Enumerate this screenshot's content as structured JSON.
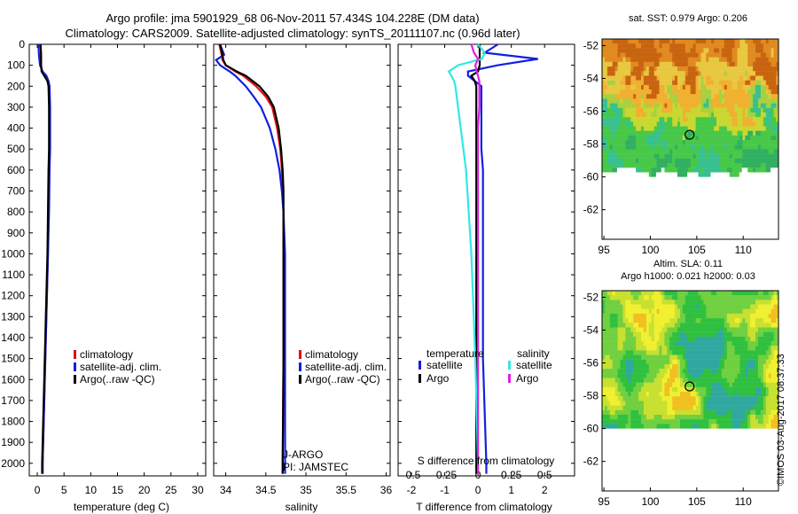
{
  "title_line1": "Argo profile: jma 5901929_68 06-Nov-2011 57.434S 104.228E (DM data)",
  "title_line2": "Climatology: CARS2009. Satellite-adjusted climatology: synTS_20111107.nc (0.96d later)",
  "stamp": "©IMOS 03-Aug-2017 08:37:33",
  "colors": {
    "climatology": "#e01010",
    "satellite": "#1020e0",
    "argo": "#000000",
    "sal_satellite": "#30e8e8",
    "sal_argo": "#e020e0",
    "land_white": "#ffffff"
  },
  "chart_data": [
    {
      "type": "line",
      "panel": "temperature",
      "xlabel": "temperature (deg C)",
      "xticks": [
        0,
        5,
        10,
        15,
        20,
        25,
        30
      ],
      "xlim": [
        -1.5,
        31.5
      ],
      "ylim": [
        2060,
        0
      ],
      "yticks": [
        0,
        100,
        200,
        300,
        400,
        500,
        600,
        700,
        800,
        900,
        1000,
        1100,
        1200,
        1300,
        1400,
        1500,
        1600,
        1700,
        1800,
        1900,
        2000
      ],
      "legend": [
        "climatology",
        "satellite-adj. clim.",
        "Argo(..raw -QC)"
      ],
      "depth": [
        0,
        50,
        100,
        130,
        150,
        175,
        200,
        300,
        400,
        500,
        600,
        800,
        1000,
        1200,
        1400,
        1600,
        1800,
        2000,
        2050
      ],
      "series": [
        {
          "name": "climatology",
          "values": [
            0.6,
            0.7,
            0.7,
            0.9,
            1.5,
            2.0,
            2.2,
            2.3,
            2.3,
            2.3,
            2.2,
            2.1,
            2.0,
            1.8,
            1.6,
            1.4,
            1.2,
            1.0,
            1.0
          ]
        },
        {
          "name": "satellite-adj. clim.",
          "values": [
            0.2,
            0.3,
            0.5,
            1.0,
            1.7,
            2.1,
            2.3,
            2.4,
            2.4,
            2.4,
            2.3,
            2.2,
            2.0,
            1.8,
            1.6,
            1.4,
            1.2,
            1.0,
            1.0
          ]
        },
        {
          "name": "Argo(..raw -QC)",
          "values": [
            0.6,
            0.7,
            0.7,
            0.8,
            1.3,
            1.9,
            2.1,
            2.2,
            2.2,
            2.2,
            2.1,
            2.0,
            1.9,
            1.7,
            1.5,
            1.3,
            1.1,
            0.9,
            0.9
          ]
        }
      ]
    },
    {
      "type": "line",
      "panel": "salinity",
      "xlabel": "salinity",
      "xticks": [
        34,
        34.5,
        35,
        35.5,
        36
      ],
      "xtick_labels": [
        "34",
        "34.5",
        "35",
        "35.5",
        "36"
      ],
      "xlim": [
        33.85,
        36.05
      ],
      "ylim": [
        2060,
        0
      ],
      "legend": [
        "climatology",
        "satellite-adj. clim.",
        "Argo(..raw -QC)"
      ],
      "annotation": [
        "J-ARGO",
        "PI: JAMSTEC"
      ],
      "depth": [
        0,
        50,
        75,
        100,
        130,
        150,
        200,
        250,
        300,
        400,
        500,
        600,
        700,
        800,
        1000,
        1500,
        2000,
        2050
      ],
      "series": [
        {
          "name": "climatology",
          "values": [
            33.92,
            33.95,
            33.96,
            34.0,
            34.12,
            34.22,
            34.38,
            34.5,
            34.58,
            34.64,
            34.68,
            34.7,
            34.71,
            34.72,
            34.72,
            34.72,
            34.71,
            34.71
          ]
        },
        {
          "name": "satellite-adj. clim.",
          "values": [
            33.93,
            33.98,
            33.88,
            33.93,
            34.05,
            34.12,
            34.25,
            34.35,
            34.44,
            34.55,
            34.62,
            34.67,
            34.7,
            34.72,
            34.74,
            34.74,
            34.74,
            34.74
          ]
        },
        {
          "name": "Argo(..raw -QC)",
          "values": [
            33.93,
            33.96,
            33.97,
            34.0,
            34.14,
            34.25,
            34.42,
            34.53,
            34.6,
            34.66,
            34.69,
            34.71,
            34.72,
            34.72,
            34.72,
            34.72,
            34.71,
            34.71
          ]
        }
      ]
    },
    {
      "type": "line",
      "panel": "differences",
      "xlabel": "T difference from climatology",
      "xlabel_top": "S difference from climatology",
      "xticks_T": [
        -2,
        -1,
        0,
        1,
        2
      ],
      "xticks_S": [
        -0.5,
        -0.25,
        0,
        0.25,
        0.5
      ],
      "xtick_labels_S": [
        "-0.5",
        "-0.25",
        "0",
        "0.25",
        "0.5"
      ],
      "xlim_T": [
        -2.4,
        2.9
      ],
      "ylim": [
        2060,
        0
      ],
      "legend_titles": [
        "temperature",
        "salinity"
      ],
      "legend": [
        "satellite",
        "Argo",
        "satellite",
        "Argo"
      ],
      "depth": [
        0,
        40,
        70,
        100,
        130,
        150,
        175,
        200,
        300,
        400,
        500,
        600,
        800,
        1000,
        1500,
        2000,
        2050
      ],
      "series": [
        {
          "name": "T satellite",
          "variable": "temperature",
          "values": [
            0.6,
            0.2,
            1.8,
            0.6,
            -0.3,
            -0.3,
            -0.1,
            0.1,
            0.1,
            0.1,
            0.1,
            0.15,
            0.15,
            0.15,
            0.15,
            0.25,
            0.25
          ]
        },
        {
          "name": "T Argo",
          "variable": "temperature",
          "values": [
            0.05,
            0.05,
            0.05,
            0.05,
            0.0,
            -0.2,
            -0.1,
            -0.05,
            -0.05,
            -0.05,
            -0.05,
            -0.05,
            -0.05,
            -0.05,
            -0.05,
            -0.05,
            -0.05
          ]
        },
        {
          "name": "S satellite",
          "variable": "salinity",
          "values": [
            0.0,
            0.05,
            0.03,
            -0.15,
            -0.22,
            -0.2,
            -0.18,
            -0.17,
            -0.15,
            -0.13,
            -0.11,
            -0.09,
            -0.07,
            -0.05,
            -0.02,
            0.0,
            0.0
          ]
        },
        {
          "name": "S Argo",
          "variable": "salinity",
          "values": [
            -0.05,
            -0.03,
            0.0,
            -0.02,
            -0.01,
            0.0,
            0.01,
            0.01,
            0.01,
            0.0,
            0.0,
            0.0,
            0.0,
            0.0,
            0.0,
            0.0,
            0.0
          ]
        }
      ]
    },
    {
      "type": "heatmap",
      "panel": "sst-map",
      "title": "sat. SST: 0.979 Argo: 0.206",
      "xticks": [
        95,
        100,
        105,
        110
      ],
      "yticks": [
        -52,
        -54,
        -56,
        -58,
        -60,
        -62
      ],
      "xlim": [
        94.8,
        113.8
      ],
      "ylim": [
        -63.8,
        -51.6
      ],
      "marker": {
        "lon": 104.228,
        "lat": -57.434
      },
      "field_sign_note": "warm orange north of ~-55, green south, no data south of ~-60"
    },
    {
      "type": "heatmap",
      "panel": "sla-map",
      "title": "Altim. SLA: 0.11",
      "subtitle": "Argo h1000: 0.021 h2000: 0.03",
      "xticks": [
        95,
        100,
        105,
        110
      ],
      "yticks": [
        -52,
        -54,
        -56,
        -58,
        -60,
        -62
      ],
      "xlim": [
        94.8,
        113.8
      ],
      "ylim": [
        -63.8,
        -51.6
      ],
      "marker": {
        "lon": 104.228,
        "lat": -57.434
      }
    }
  ]
}
